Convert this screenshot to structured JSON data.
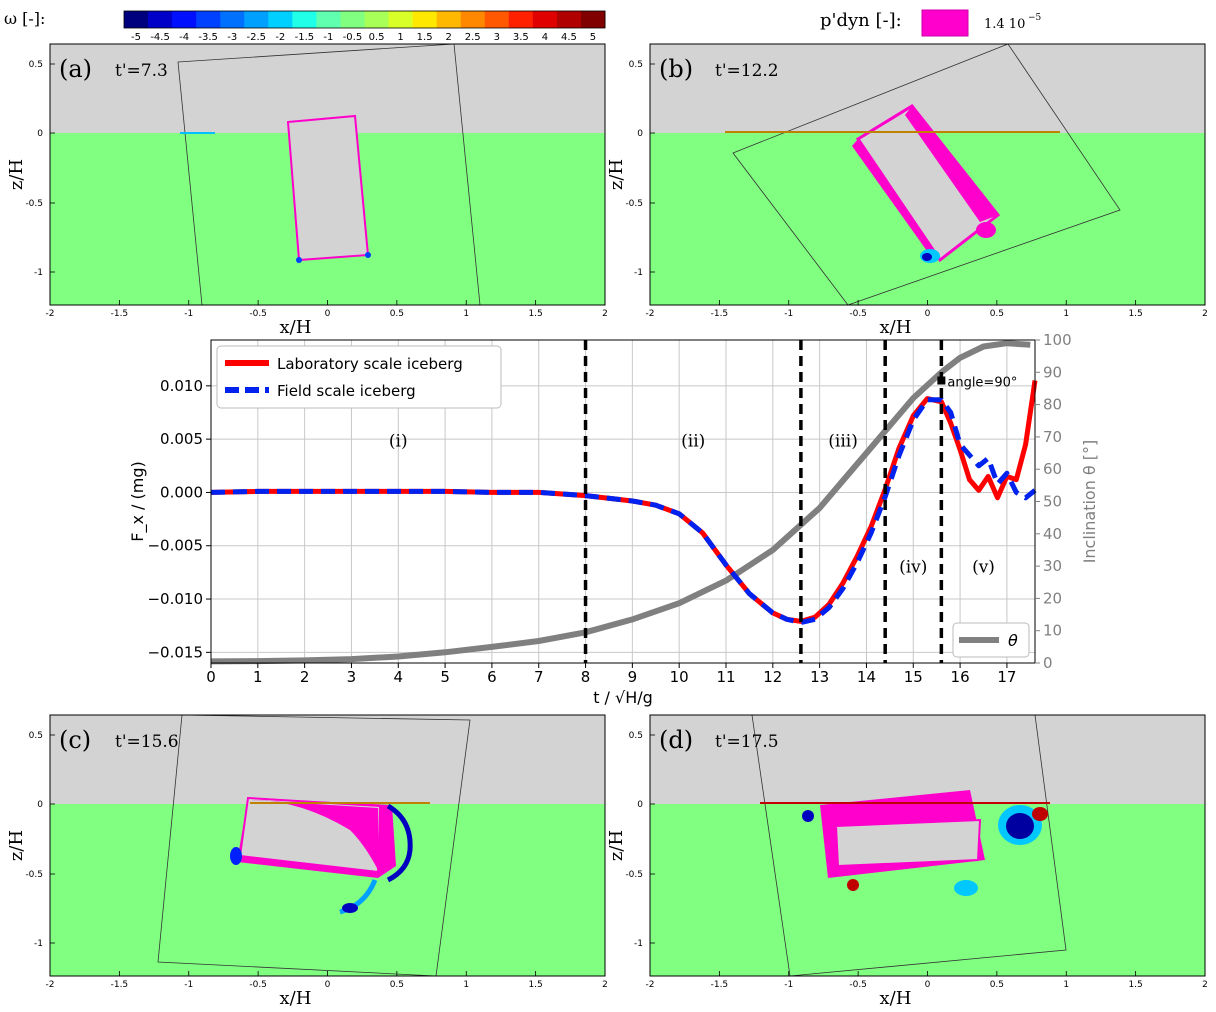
{
  "legend_top": {
    "omega_label": "ω [-]:",
    "colorbar_ticks": [
      "-5",
      "-4.5",
      "-4",
      "-3.5",
      "-3",
      "-2.5",
      "-2",
      "-1.5",
      "-1",
      "-0.5",
      "0.5",
      "1",
      "1.5",
      "2",
      "2.5",
      "3",
      "3.5",
      "4",
      "4.5",
      "5"
    ],
    "colorbar_colors": [
      "#00007f",
      "#0000c8",
      "#0010ff",
      "#0040ff",
      "#0070ff",
      "#00a0ff",
      "#00d0ff",
      "#20ffe8",
      "#60ffb0",
      "#80ff80",
      "#a8ff58",
      "#d8ff28",
      "#ffe800",
      "#ffb800",
      "#ff8800",
      "#ff5800",
      "#ff2000",
      "#e00000",
      "#b00000",
      "#800000"
    ],
    "pdyn_label": "p'dyn [-]:",
    "pdyn_value": "1.4 10",
    "pdyn_exp": "−5",
    "pdyn_color": "#ff00cc"
  },
  "panels": [
    {
      "label": "(a)",
      "time": "t'=7.3",
      "xlabel": "x/H",
      "ylabel": "z/H",
      "xticks": [
        "-2",
        "-1.5",
        "-1",
        "-0.5",
        "0",
        "0.5",
        "1",
        "1.5",
        "2"
      ],
      "yticks": [
        "0.5",
        "0",
        "-0.5",
        "-1"
      ]
    },
    {
      "label": "(b)",
      "time": "t'=12.2",
      "xlabel": "x/H",
      "ylabel": "z/H",
      "xticks": [
        "-2",
        "-1.5",
        "-1",
        "-0.5",
        "0",
        "0.5",
        "1",
        "1.5",
        "2"
      ],
      "yticks": [
        "0.5",
        "0",
        "-0.5",
        "-1"
      ]
    },
    {
      "label": "(c)",
      "time": "t'=15.6",
      "xlabel": "x/H",
      "ylabel": "z/H",
      "xticks": [
        "-2",
        "-1.5",
        "-1",
        "-0.5",
        "0",
        "0.5",
        "1",
        "1.5",
        "2"
      ],
      "yticks": [
        "0.5",
        "0",
        "-0.5",
        "-1"
      ]
    },
    {
      "label": "(d)",
      "time": "t'=17.5",
      "xlabel": "x/H",
      "ylabel": "z/H",
      "xticks": [
        "-2",
        "-1.5",
        "-1",
        "-0.5",
        "0",
        "0.5",
        "1",
        "1.5",
        "2"
      ],
      "yticks": [
        "0.5",
        "0",
        "-0.5",
        "-1"
      ]
    }
  ],
  "colors": {
    "water": "#80ff80",
    "air": "#d3d3d3",
    "lab": "#ff0000",
    "field": "#0022ee",
    "theta": "#808080",
    "pdyn": "#ff00cc"
  },
  "chart_data": {
    "type": "line",
    "xlabel": "t / √H/g",
    "ylabel": "F_x / (mg)",
    "y2label": "Inclination θ [°]",
    "xlim": [
      0,
      17.6
    ],
    "ylim": [
      -0.016,
      0.0143
    ],
    "y2lim": [
      0,
      100
    ],
    "xticks": [
      0,
      1,
      2,
      3,
      4,
      5,
      6,
      7,
      8,
      9,
      10,
      11,
      12,
      13,
      14,
      15,
      16,
      17
    ],
    "yticks": [
      0.01,
      0.005,
      0.0,
      -0.005,
      -0.01,
      -0.015
    ],
    "ytick_labels": [
      "0.010",
      "0.005",
      "0.000",
      "−0.005",
      "−0.010",
      "−0.015"
    ],
    "y2ticks": [
      0,
      10,
      20,
      30,
      40,
      50,
      60,
      70,
      80,
      90,
      100
    ],
    "grid": true,
    "legend_main": [
      "Laboratory scale iceberg",
      "Field scale iceberg"
    ],
    "legend_theta": "θ",
    "phase_lines": [
      8.0,
      12.6,
      14.4,
      15.6
    ],
    "phase_labels": [
      {
        "text": "(i)",
        "x": 4.0,
        "y": 0.0043
      },
      {
        "text": "(ii)",
        "x": 10.3,
        "y": 0.0043
      },
      {
        "text": "(iii)",
        "x": 13.5,
        "y": 0.0043
      },
      {
        "text": "(iv)",
        "x": 15.0,
        "y": -0.0075
      },
      {
        "text": "(v)",
        "x": 16.5,
        "y": -0.0075
      }
    ],
    "annotation": {
      "text": "angle=90°",
      "x": 15.6,
      "y": 0.0105
    },
    "series": [
      {
        "name": "Laboratory scale iceberg",
        "x": [
          0,
          1,
          2,
          3,
          4,
          5,
          6,
          7,
          8,
          9,
          9.5,
          10,
          10.5,
          11,
          11.5,
          12,
          12.3,
          12.6,
          12.9,
          13.2,
          13.5,
          13.8,
          14.1,
          14.4,
          14.7,
          15.0,
          15.3,
          15.6,
          15.8,
          16.0,
          16.2,
          16.4,
          16.6,
          16.8,
          17.0,
          17.2,
          17.4,
          17.6
        ],
        "y": [
          0,
          0.0001,
          0.0001,
          0.0001,
          0.0001,
          0.0001,
          0,
          0,
          -0.0003,
          -0.0008,
          -0.0012,
          -0.002,
          -0.0038,
          -0.0068,
          -0.0095,
          -0.0113,
          -0.0119,
          -0.0121,
          -0.0117,
          -0.0105,
          -0.0085,
          -0.006,
          -0.0032,
          0.0003,
          0.0042,
          0.0072,
          0.0088,
          0.0085,
          0.0065,
          0.004,
          0.0012,
          0.0002,
          0.0015,
          -0.0005,
          0.0015,
          0.0012,
          0.0045,
          0.0105
        ]
      },
      {
        "name": "Field scale iceberg",
        "x": [
          0,
          1,
          2,
          3,
          4,
          5,
          6,
          7,
          8,
          9,
          9.5,
          10,
          10.5,
          11,
          11.5,
          12,
          12.3,
          12.6,
          12.9,
          13.2,
          13.5,
          13.8,
          14.1,
          14.4,
          14.7,
          15.0,
          15.3,
          15.6,
          15.8,
          16.0,
          16.2,
          16.4,
          16.6,
          16.8,
          17.0,
          17.2,
          17.4,
          17.6
        ],
        "y": [
          0,
          0.0001,
          0.0001,
          0.0001,
          0.0001,
          0.0001,
          0,
          0,
          -0.0003,
          -0.0008,
          -0.0012,
          -0.002,
          -0.0038,
          -0.0068,
          -0.0095,
          -0.0113,
          -0.0119,
          -0.0122,
          -0.0119,
          -0.0108,
          -0.009,
          -0.0066,
          -0.0038,
          -0.0004,
          0.0035,
          0.0068,
          0.0087,
          0.0087,
          0.0075,
          0.0045,
          0.0035,
          0.0025,
          0.0032,
          0.0008,
          0.0018,
          0.0,
          -0.0005,
          0.0002
        ]
      },
      {
        "name": "θ",
        "axis": "right",
        "x": [
          0,
          1,
          2,
          3,
          4,
          5,
          6,
          7,
          8,
          9,
          10,
          11,
          12,
          13,
          14,
          15,
          15.6,
          16,
          16.5,
          17,
          17.5
        ],
        "y": [
          0.5,
          0.6,
          0.8,
          1.2,
          2.0,
          3.3,
          5.0,
          6.8,
          9.5,
          13.5,
          18.5,
          25.5,
          35.0,
          48.0,
          65.0,
          82.0,
          90.0,
          94.5,
          98.0,
          99.0,
          98.5
        ]
      }
    ]
  }
}
